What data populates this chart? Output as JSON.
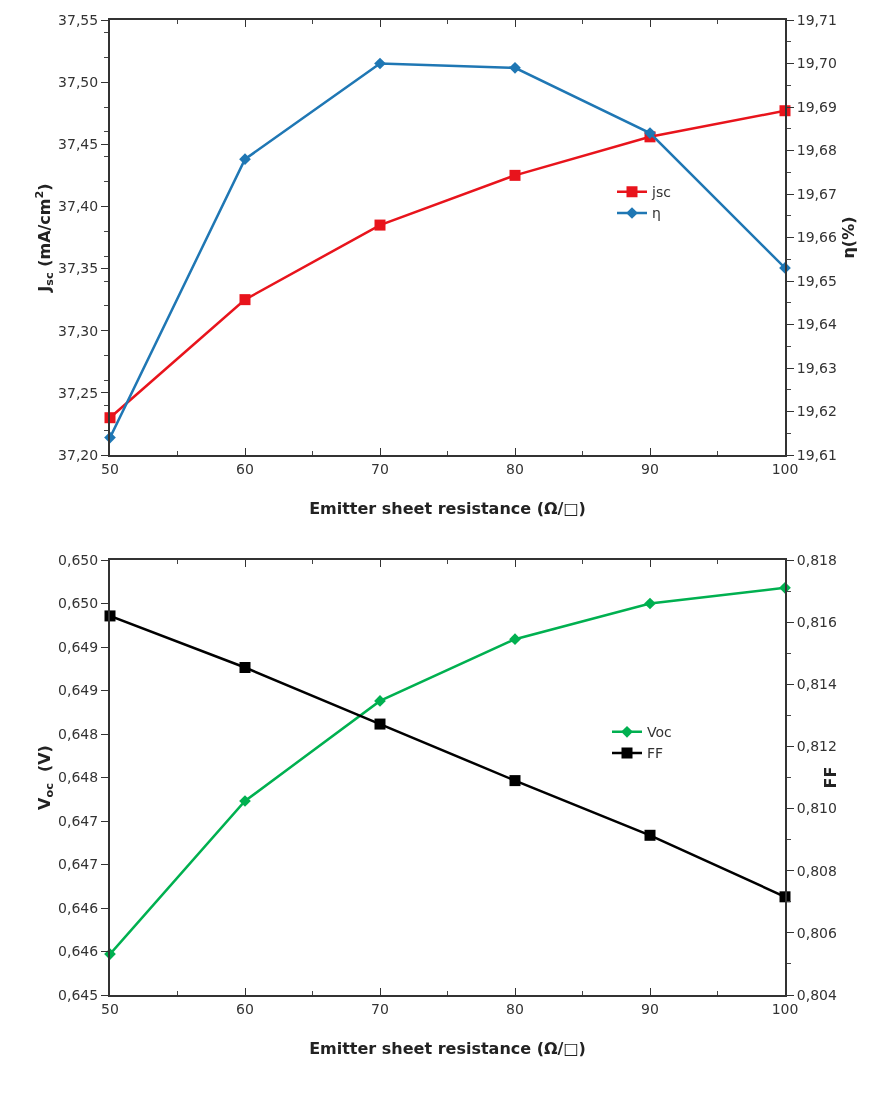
{
  "chart_data": [
    {
      "type": "line",
      "xlabel": "Emitter sheet resistance (Ω/□)",
      "ylabel": "J$_{sc}$ (mA/cm$^{2}$)",
      "y2label": "η(%)",
      "x": [
        50,
        60,
        70,
        80,
        90,
        100
      ],
      "xlim": [
        50,
        100
      ],
      "xticks": [
        50,
        60,
        70,
        80,
        90,
        100
      ],
      "ylim": [
        37.2,
        37.55
      ],
      "yticks": [
        {
          "value": 37.2,
          "label": "37,20"
        },
        {
          "value": 37.25,
          "label": "37,25"
        },
        {
          "value": 37.3,
          "label": "37,30"
        },
        {
          "value": 37.35,
          "label": "37,35"
        },
        {
          "value": 37.4,
          "label": "37,40"
        },
        {
          "value": 37.45,
          "label": "37,45"
        },
        {
          "value": 37.5,
          "label": "37,50"
        },
        {
          "value": 37.55,
          "label": "37,55"
        }
      ],
      "y2lim": [
        19.61,
        19.71
      ],
      "y2ticks": [
        {
          "value": 19.61,
          "label": "19,61"
        },
        {
          "value": 19.62,
          "label": "19,62"
        },
        {
          "value": 19.63,
          "label": "19,63"
        },
        {
          "value": 19.64,
          "label": "19,64"
        },
        {
          "value": 19.65,
          "label": "19,65"
        },
        {
          "value": 19.66,
          "label": "19,66"
        },
        {
          "value": 19.67,
          "label": "19,67"
        },
        {
          "value": 19.68,
          "label": "19,68"
        },
        {
          "value": 19.69,
          "label": "19,69"
        },
        {
          "value": 19.7,
          "label": "19,70"
        },
        {
          "value": 19.71,
          "label": "19,71"
        }
      ],
      "grid": false,
      "legend": "right",
      "line_style": "solid",
      "series": [
        {
          "name": "jsc",
          "color": "#e8141c",
          "marker": "square",
          "values": [
            37.23,
            37.325,
            37.385,
            37.425,
            37.456,
            37.477
          ]
        },
        {
          "name": "η",
          "color": "#1f77b4",
          "marker": "diamond",
          "axis": "y2",
          "values": [
            19.614,
            19.678,
            19.7,
            19.699,
            19.684,
            19.653
          ]
        }
      ]
    },
    {
      "type": "line",
      "xlabel": "Emitter sheet resistance (Ω/□)",
      "ylabel": "V$_{oc}$  (V)",
      "y2label": "FF",
      "x": [
        50,
        60,
        70,
        80,
        90,
        100
      ],
      "xlim": [
        50,
        100
      ],
      "xticks": [
        50,
        60,
        70,
        80,
        90,
        100
      ],
      "ylim": [
        0.645,
        0.65
      ],
      "yticks": [
        {
          "value": 0.645,
          "label": "0,645"
        },
        {
          "value": 0.6455,
          "label": "0,646"
        },
        {
          "value": 0.646,
          "label": "0,646"
        },
        {
          "value": 0.6465,
          "label": "0,647"
        },
        {
          "value": 0.647,
          "label": "0,647"
        },
        {
          "value": 0.6475,
          "label": "0,648"
        },
        {
          "value": 0.648,
          "label": "0,648"
        },
        {
          "value": 0.6485,
          "label": "0,649"
        },
        {
          "value": 0.649,
          "label": "0,649"
        },
        {
          "value": 0.6495,
          "label": "0,650"
        },
        {
          "value": 0.65,
          "label": "0,650"
        }
      ],
      "y2lim": [
        0.804,
        0.818
      ],
      "y2ticks": [
        {
          "value": 0.804,
          "label": "0,804"
        },
        {
          "value": 0.806,
          "label": "0,806"
        },
        {
          "value": 0.808,
          "label": "0,808"
        },
        {
          "value": 0.81,
          "label": "0,810"
        },
        {
          "value": 0.812,
          "label": "0,812"
        },
        {
          "value": 0.814,
          "label": "0,814"
        },
        {
          "value": 0.816,
          "label": "0,816"
        },
        {
          "value": 0.818,
          "label": "0,818"
        }
      ],
      "grid": false,
      "legend": "right",
      "line_style": "solid",
      "series": [
        {
          "name": "Voc",
          "color": "#00b050",
          "marker": "diamond",
          "values": [
            0.64547,
            0.64723,
            0.64838,
            0.64909,
            0.6495,
            0.64968
          ]
        },
        {
          "name": "FF",
          "color": "#000000",
          "marker": "square",
          "axis": "y2",
          "values": [
            0.8162,
            0.81454,
            0.81272,
            0.8109,
            0.80914,
            0.80716
          ]
        }
      ]
    }
  ]
}
